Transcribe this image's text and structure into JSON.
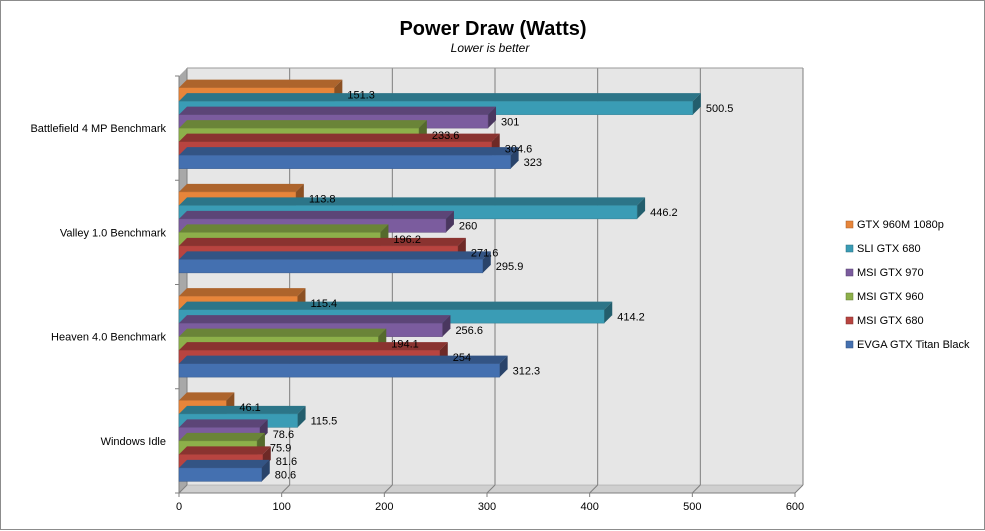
{
  "chart_data": {
    "type": "bar",
    "orientation": "horizontal",
    "style": "3d",
    "title": "Power Draw (Watts)",
    "subtitle": "Lower is better",
    "xlabel": "",
    "ylabel": "",
    "xlim": [
      0,
      600
    ],
    "xticks": [
      0,
      100,
      200,
      300,
      400,
      500,
      600
    ],
    "xtick_labels": [
      "0",
      "100",
      "200",
      "300",
      "400",
      "500",
      "600"
    ],
    "grid": true,
    "legend_position": "right",
    "categories": [
      "Battlefield 4 MP Benchmark",
      "Valley 1.0 Benchmark",
      "Heaven 4.0 Benchmark",
      "Windows Idle"
    ],
    "series": [
      {
        "name": "GTX 960M 1080p",
        "color": "#E7853A",
        "values": [
          151.3,
          113.8,
          115.4,
          46.1
        ],
        "labels": [
          "151.3",
          "113.8",
          "115.4",
          "46.1"
        ]
      },
      {
        "name": "SLI GTX 680",
        "color": "#3A9CB5",
        "values": [
          500.5,
          446.2,
          414.2,
          115.5
        ],
        "labels": [
          "500.5",
          "446.2",
          "414.2",
          "115.5"
        ]
      },
      {
        "name": "MSI GTX 970",
        "color": "#7B5C9E",
        "values": [
          301,
          260,
          256.6,
          78.6
        ],
        "labels": [
          "301",
          "260",
          "256.6",
          "78.6"
        ]
      },
      {
        "name": "MSI GTX 960",
        "color": "#8DB04A",
        "values": [
          233.6,
          196.2,
          194.1,
          75.9
        ],
        "labels": [
          "233.6",
          "196.2",
          "194.1",
          "75.9"
        ]
      },
      {
        "name": "MSI GTX 680",
        "color": "#B84440",
        "values": [
          304.6,
          271.6,
          254,
          81.6
        ],
        "labels": [
          "304.6",
          "271.6",
          "254",
          "81.6"
        ]
      },
      {
        "name": "EVGA GTX Titan Black",
        "color": "#4470B0",
        "values": [
          323,
          295.9,
          312.3,
          80.6
        ],
        "labels": [
          "323",
          "295.9",
          "312.3",
          "80.6"
        ]
      }
    ],
    "wall_color": "#e6e6e6",
    "gridline_color": "#7f7f7f"
  }
}
